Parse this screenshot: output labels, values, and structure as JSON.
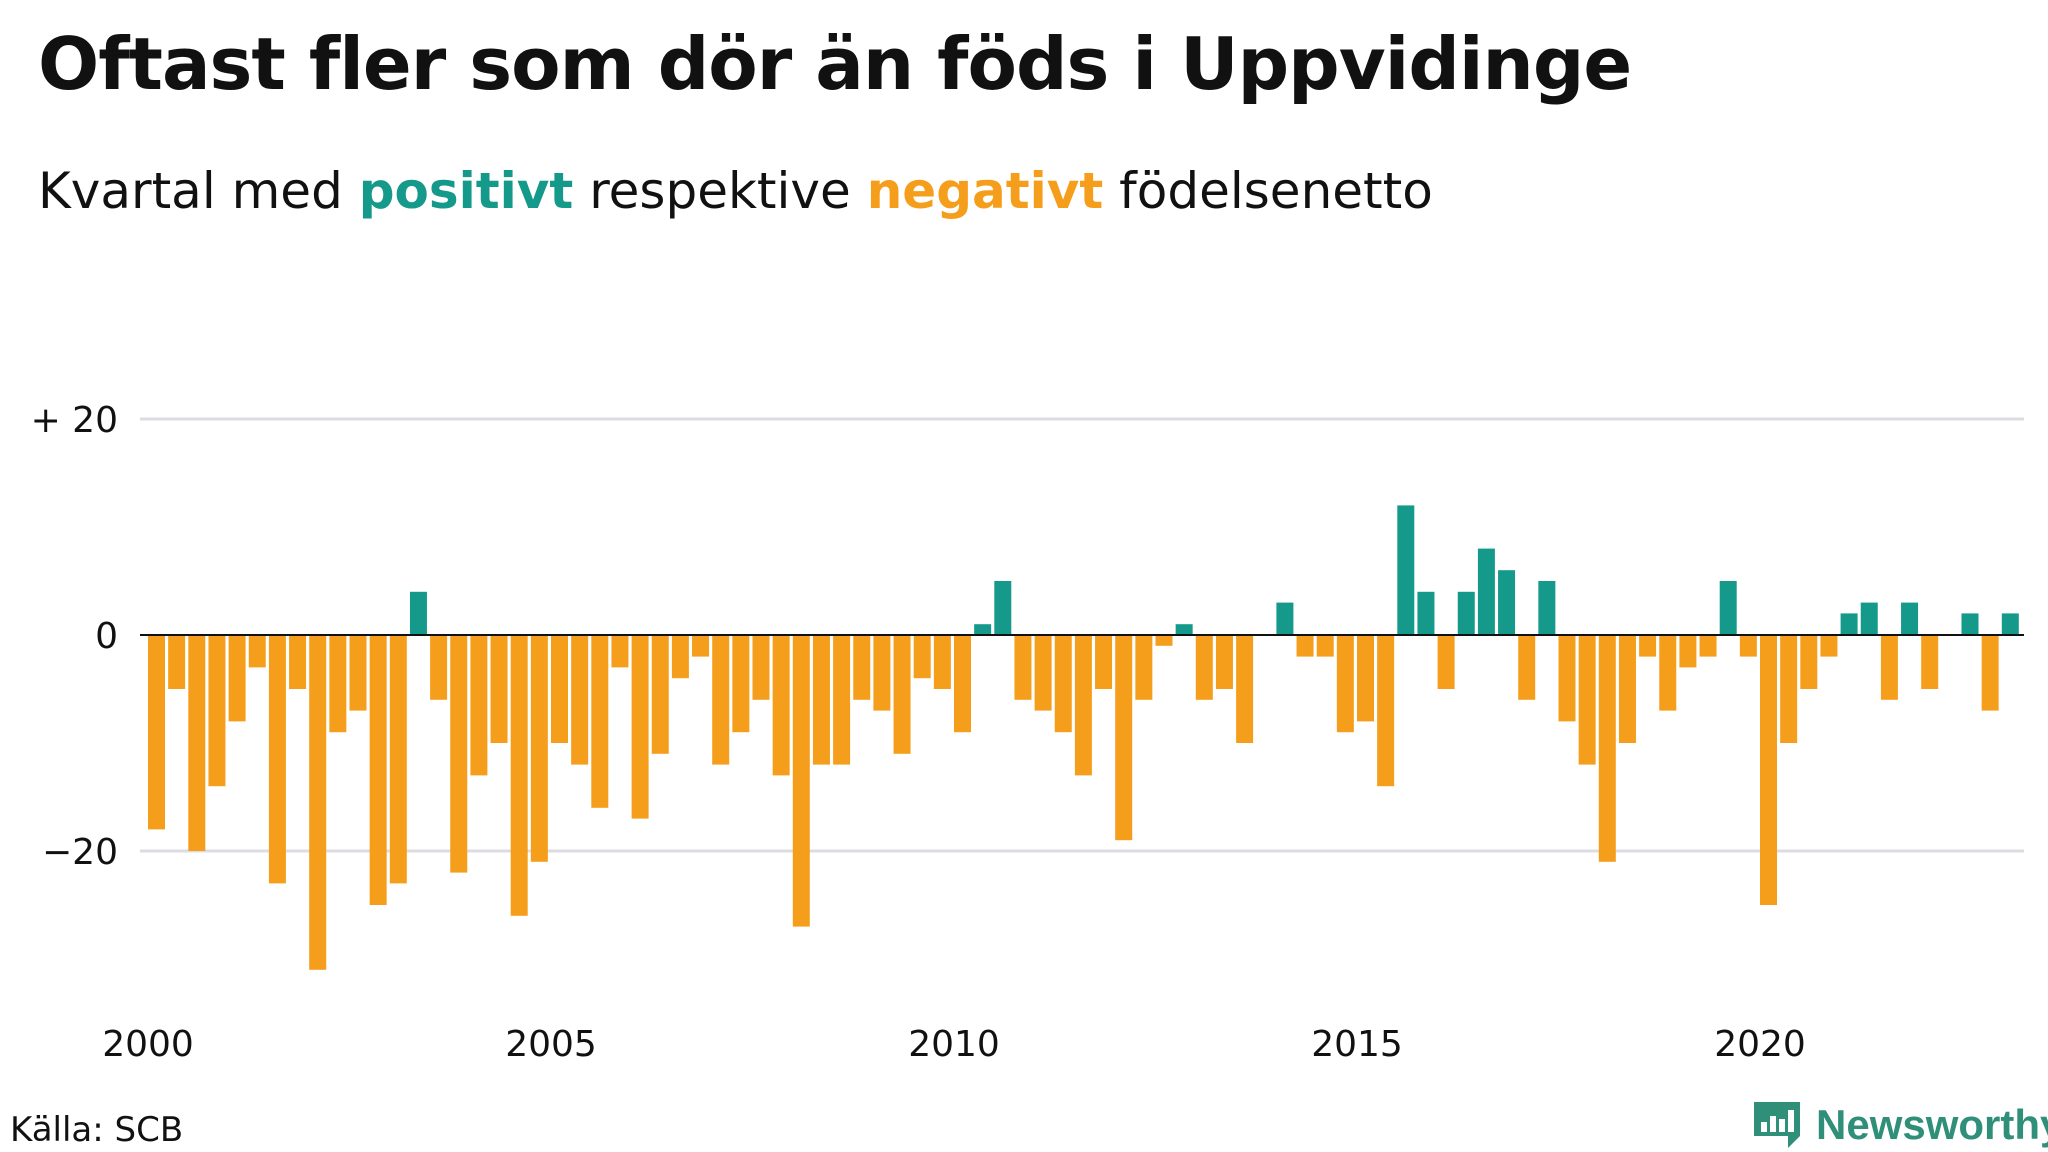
{
  "title": "Oftast fler som dör än föds i Uppvidinge",
  "subtitle": {
    "prefix": "Kvartal med",
    "positive": "positivt",
    "middle": "respektive",
    "negative": "negativt",
    "suffix": "födelsenetto"
  },
  "source": "Källa: SCB",
  "brand": {
    "name": "Newsworthy",
    "icon": "newsworthy-logo-icon"
  },
  "colors": {
    "positive": "#14998a",
    "negative": "#f59e1c",
    "grid": "#dcdce2",
    "zero_line": "#111111",
    "text": "#111111",
    "brand": "#2f8f79"
  },
  "chart_data": {
    "type": "bar",
    "title": "Oftast fler som dör än föds i Uppvidinge",
    "subtitle": "Kvartal med positivt respektive negativt födelsenetto",
    "xlabel": "",
    "ylabel": "",
    "x_start": "2000 Q1",
    "frequency": "quarter",
    "xticks": [
      "2000",
      "2005",
      "2010",
      "2015",
      "2020"
    ],
    "yticks": [
      20,
      0,
      -20
    ],
    "ytick_labels": [
      "+ 20",
      "0",
      "−20"
    ],
    "ylim": [
      -32,
      20
    ],
    "grid": true,
    "legend": "none",
    "values": [
      -18,
      -5,
      -20,
      -14,
      -8,
      -3,
      -23,
      -5,
      -31,
      -9,
      -7,
      -25,
      -23,
      4,
      -6,
      -22,
      -13,
      -10,
      -26,
      -21,
      -10,
      -12,
      -16,
      -3,
      -17,
      -11,
      -4,
      -2,
      -12,
      -9,
      -6,
      -13,
      -27,
      -12,
      -12,
      -6,
      -7,
      -11,
      -4,
      -5,
      -9,
      1,
      5,
      -6,
      -7,
      -9,
      -13,
      -5,
      -19,
      -6,
      -1,
      1,
      -6,
      -5,
      -10,
      0,
      3,
      -2,
      -2,
      -9,
      -8,
      -14,
      12,
      4,
      -5,
      4,
      8,
      6,
      -6,
      5,
      -8,
      -12,
      -21,
      -10,
      -2,
      -7,
      -3,
      -2,
      5,
      -2,
      -25,
      -10,
      -5,
      -2,
      2,
      3,
      -6,
      3,
      -5,
      0,
      2,
      -7,
      2
    ]
  }
}
